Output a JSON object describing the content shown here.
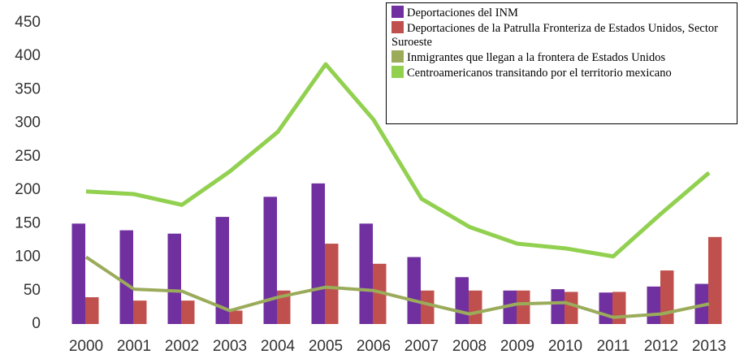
{
  "chart_data": {
    "type": "bar-line",
    "categories": [
      "2000",
      "2001",
      "2002",
      "2003",
      "2004",
      "2005",
      "2006",
      "2007",
      "2008",
      "2009",
      "2010",
      "2011",
      "2012",
      "2013"
    ],
    "series": [
      {
        "name": "Deportaciones del INM",
        "type": "bar",
        "color": "#7030a0",
        "values": [
          150,
          140,
          135,
          160,
          190,
          210,
          150,
          100,
          70,
          50,
          52,
          47,
          56,
          60
        ]
      },
      {
        "name": "Deportaciones de la Patrulla Fronteriza de Estados Unidos, Sector Suroeste",
        "type": "bar",
        "color": "#c0504d",
        "values": [
          40,
          35,
          35,
          20,
          50,
          120,
          90,
          50,
          50,
          50,
          48,
          48,
          80,
          130
        ]
      },
      {
        "name": "Inmigrantes que llegan a la frontera de Estados Unidos",
        "type": "line",
        "color": "#9aab5a",
        "values": [
          100,
          52,
          49,
          20,
          40,
          55,
          50,
          32,
          15,
          30,
          32,
          10,
          15,
          30
        ]
      },
      {
        "name": "Centroamericanos transitando por el territorio mexicano",
        "type": "line",
        "color": "#92d050",
        "values": [
          198,
          194,
          178,
          228,
          287,
          388,
          305,
          187,
          145,
          120,
          113,
          101,
          165,
          226
        ]
      }
    ],
    "ylim": [
      0,
      450
    ],
    "yticks": [
      0,
      50,
      100,
      150,
      200,
      250,
      300,
      350,
      400,
      450
    ],
    "grid": false
  }
}
